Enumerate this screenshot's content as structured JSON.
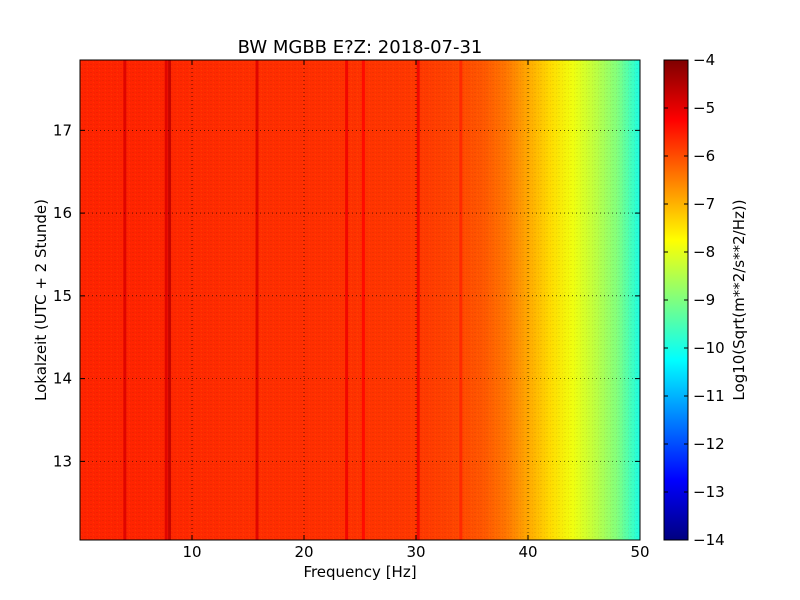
{
  "chart_data": {
    "type": "heatmap",
    "title": "BW MGBB E?Z: 2018-07-31",
    "xlabel": "Frequency [Hz]",
    "ylabel": "Lokalzeit (UTC + 2 Stunde)",
    "xlim": [
      0,
      50
    ],
    "ylim": [
      17.85,
      12.05
    ],
    "x_ticks": [
      10,
      20,
      30,
      40,
      50
    ],
    "y_ticks": [
      13,
      14,
      15,
      16,
      17
    ],
    "grid": true,
    "colormap": "jet",
    "colorbar": {
      "label": "Log10(Sqrt(m**2/s**2/Hz))",
      "range": [
        -14,
        -4
      ],
      "ticks": [
        -4,
        -5,
        -6,
        -7,
        -8,
        -9,
        -10,
        -11,
        -12,
        -13,
        -14
      ]
    },
    "frequency_profile": {
      "x": [
        0,
        5,
        10,
        15,
        20,
        25,
        30,
        33,
        36,
        38,
        40,
        42,
        44,
        46,
        48,
        50
      ],
      "values": [
        -5.6,
        -5.6,
        -5.65,
        -5.7,
        -5.7,
        -5.75,
        -5.8,
        -5.9,
        -6.1,
        -6.4,
        -6.9,
        -7.4,
        -7.9,
        -8.4,
        -9.0,
        -10.0
      ]
    },
    "dark_frequency_lines": [
      {
        "freq": 4,
        "value": -4.9
      },
      {
        "freq": 7.7,
        "value": -4.9
      },
      {
        "freq": 8.0,
        "value": -4.6
      },
      {
        "freq": 15.8,
        "value": -4.9
      },
      {
        "freq": 23.8,
        "value": -5.1
      },
      {
        "freq": 25.3,
        "value": -5.3
      },
      {
        "freq": 30.2,
        "value": -5.1
      },
      {
        "freq": 34.0,
        "value": -5.6
      }
    ]
  }
}
